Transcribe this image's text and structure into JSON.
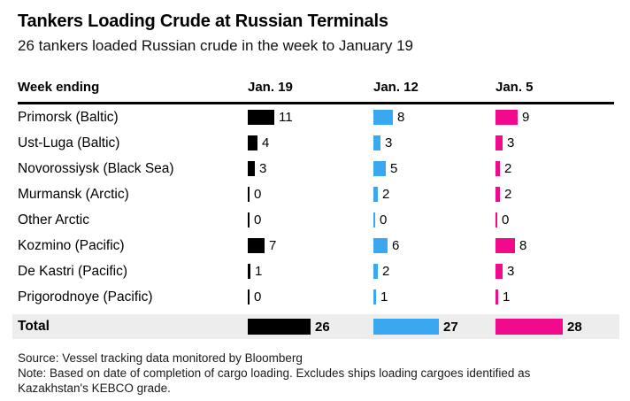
{
  "header": {
    "title": "Tankers Loading Crude at Russian Terminals",
    "subtitle": "26 tankers loaded Russian crude in the week to January 19"
  },
  "table": {
    "label_header": "Week ending",
    "columns": [
      "Jan. 19",
      "Jan. 12",
      "Jan. 5"
    ],
    "rows": [
      {
        "label": "Primorsk (Baltic)",
        "values": [
          11,
          8,
          9
        ]
      },
      {
        "label": "Ust-Luga (Baltic)",
        "values": [
          4,
          3,
          3
        ]
      },
      {
        "label": "Novorossiysk (Black Sea)",
        "values": [
          3,
          5,
          2
        ]
      },
      {
        "label": "Murmansk (Arctic)",
        "values": [
          0,
          2,
          2
        ]
      },
      {
        "label": "Other Arctic",
        "values": [
          0,
          0,
          0
        ]
      },
      {
        "label": "Kozmino (Pacific)",
        "values": [
          7,
          6,
          8
        ]
      },
      {
        "label": "De Kastri (Pacific)",
        "values": [
          1,
          2,
          3
        ]
      },
      {
        "label": "Prigorodnoye (Pacific)",
        "values": [
          0,
          1,
          1
        ]
      }
    ],
    "total": {
      "label": "Total",
      "values": [
        26,
        27,
        28
      ]
    }
  },
  "footer": {
    "source": "Source: Vessel tracking data monitored by Bloomberg",
    "note": "Note: Based on date of completion of cargo loading. Excludes ships loading cargoes identified as Kazakhstan's KEBCO grade."
  },
  "colors": {
    "series": [
      "#000000",
      "#39A8F0",
      "#F20A8C"
    ],
    "total_row_background": "#EDEDED",
    "rule": "#000000"
  },
  "chart_data": {
    "type": "bar",
    "orientation": "horizontal",
    "title": "Tankers Loading Crude at Russian Terminals",
    "subtitle": "26 tankers loaded Russian crude in the week to January 19",
    "unit": "tankers",
    "value_labels": true,
    "grid": false,
    "legend_position": "column-headers",
    "categories": [
      "Primorsk (Baltic)",
      "Ust-Luga (Baltic)",
      "Novorossiysk (Black Sea)",
      "Murmansk (Arctic)",
      "Other Arctic",
      "Kozmino (Pacific)",
      "De Kastri (Pacific)",
      "Prigorodnoye (Pacific)",
      "Total"
    ],
    "series": [
      {
        "name": "Jan. 19",
        "color": "#000000",
        "values": [
          11,
          4,
          3,
          0,
          0,
          7,
          1,
          0,
          26
        ]
      },
      {
        "name": "Jan. 12",
        "color": "#39A8F0",
        "values": [
          8,
          3,
          5,
          2,
          0,
          6,
          2,
          1,
          27
        ]
      },
      {
        "name": "Jan. 5",
        "color": "#F20A8C",
        "values": [
          9,
          3,
          2,
          2,
          0,
          8,
          3,
          1,
          28
        ]
      }
    ]
  }
}
